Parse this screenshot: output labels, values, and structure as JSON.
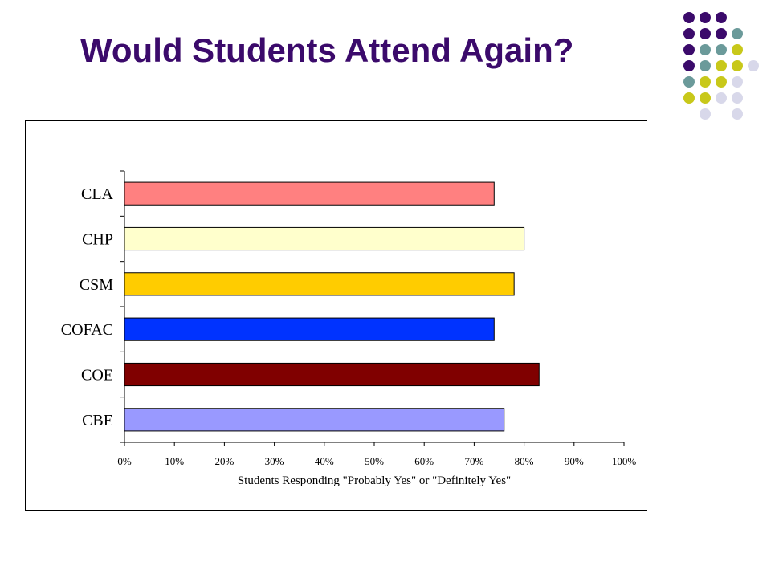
{
  "slide": {
    "title": "Would Students Attend Again?"
  },
  "decoration": {
    "dot_rows": [
      [
        "#3b0a6b",
        "#3b0a6b",
        "#3b0a6b",
        null
      ],
      [
        "#3b0a6b",
        "#3b0a6b",
        "#3b0a6b",
        "#6b9a9a",
        null
      ],
      [
        "#3b0a6b",
        "#6b9a9a",
        "#6b9a9a",
        "#c8c81a",
        null
      ],
      [
        "#3b0a6b",
        "#6b9a9a",
        "#c8c81a",
        "#c8c81a",
        "#d8d8ea"
      ],
      [
        "#6b9a9a",
        "#c8c81a",
        "#c8c81a",
        "#d8d8ea",
        null
      ],
      [
        "#c8c81a",
        "#c8c81a",
        "#d8d8ea",
        "#d8d8ea",
        null
      ],
      [
        null,
        "#d8d8ea",
        null,
        "#d8d8ea",
        null
      ]
    ]
  },
  "chart_data": {
    "type": "bar",
    "orientation": "horizontal",
    "title": "",
    "xlabel": "Students Responding \"Probably Yes\" or \"Definitely Yes\"",
    "ylabel": "",
    "categories": [
      "CLA",
      "CHP",
      "CSM",
      "COFAC",
      "COE",
      "CBE"
    ],
    "values": [
      74,
      80,
      78,
      74,
      83,
      76
    ],
    "bar_colors": [
      "#ff8080",
      "#ffffcc",
      "#ffcc00",
      "#0033ff",
      "#800000",
      "#9999ff"
    ],
    "xlim": [
      0,
      100
    ],
    "xticks": [
      "0%",
      "10%",
      "20%",
      "30%",
      "40%",
      "50%",
      "60%",
      "70%",
      "80%",
      "90%",
      "100%"
    ],
    "grid": false,
    "legend": "none"
  }
}
